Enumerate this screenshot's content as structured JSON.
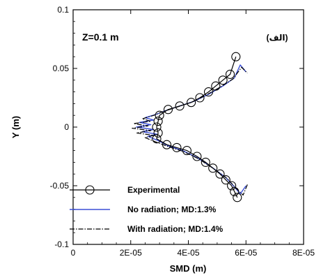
{
  "chart_data": {
    "type": "line",
    "xlabel": "SMD (m)",
    "ylabel": "Y (m)",
    "xlim": [
      0,
      8e-05
    ],
    "ylim": [
      -0.1,
      0.1
    ],
    "x_ticks": [
      "0",
      "2E-05",
      "4E-05",
      "6E-05",
      "8E-05"
    ],
    "y_ticks": [
      "0.1",
      "0.05",
      "0",
      "-0.05",
      "-0.1"
    ],
    "annotations": [
      "Z=0.1 m",
      "(الف)"
    ],
    "legend_position": "bottom-left",
    "series": [
      {
        "name": "Experimental",
        "style": "solid-circle",
        "color": "#000000",
        "points": [
          [
            5.7e-05,
            -0.06
          ],
          [
            5.6e-05,
            -0.055
          ],
          [
            5.5e-05,
            -0.05
          ],
          [
            5.3e-05,
            -0.045
          ],
          [
            5.1e-05,
            -0.04
          ],
          [
            4.85e-05,
            -0.035
          ],
          [
            4.6e-05,
            -0.03
          ],
          [
            4.3e-05,
            -0.025
          ],
          [
            3.95e-05,
            -0.02
          ],
          [
            3.6e-05,
            -0.0175
          ],
          [
            3.25e-05,
            -0.015
          ],
          [
            2.9e-05,
            -0.01
          ],
          [
            2.95e-05,
            -0.005
          ],
          [
            2.9e-05,
            0.0
          ],
          [
            2.95e-05,
            0.005
          ],
          [
            3e-05,
            0.01
          ],
          [
            3.3e-05,
            0.015
          ],
          [
            3.7e-05,
            0.018
          ],
          [
            4.1e-05,
            0.021
          ],
          [
            4.4e-05,
            0.025
          ],
          [
            4.7e-05,
            0.03
          ],
          [
            4.95e-05,
            0.035
          ],
          [
            5.2e-05,
            0.04
          ],
          [
            5.45e-05,
            0.045
          ],
          [
            5.65e-05,
            0.06
          ]
        ]
      },
      {
        "name": "No radiation; MD:1.3%",
        "style": "solid",
        "color": "#3b4fd6",
        "points": [
          [
            6e-05,
            -0.05
          ],
          [
            5.8e-05,
            -0.057
          ],
          [
            5.6e-05,
            -0.051
          ],
          [
            5.3e-05,
            -0.043
          ],
          [
            4.8e-05,
            -0.034
          ],
          [
            4.3e-05,
            -0.026
          ],
          [
            3.8e-05,
            -0.02
          ],
          [
            3.3e-05,
            -0.016
          ],
          [
            3e-05,
            -0.012
          ],
          [
            2.6e-05,
            -0.008
          ],
          [
            2.9e-05,
            -0.006
          ],
          [
            2.4e-05,
            -0.004
          ],
          [
            2.8e-05,
            -0.002
          ],
          [
            2.2e-05,
            0.0
          ],
          [
            2.7e-05,
            0.002
          ],
          [
            2.3e-05,
            0.004
          ],
          [
            2.8e-05,
            0.006
          ],
          [
            2.5e-05,
            0.008
          ],
          [
            2.9e-05,
            0.011
          ],
          [
            3.2e-05,
            0.014
          ],
          [
            3.7e-05,
            0.018
          ],
          [
            4.2e-05,
            0.022
          ],
          [
            4.7e-05,
            0.028
          ],
          [
            5.2e-05,
            0.035
          ],
          [
            5.6e-05,
            0.042
          ],
          [
            5.8e-05,
            0.053
          ],
          [
            6e-05,
            0.047
          ]
        ]
      },
      {
        "name": "With radiation; MD:1.4%",
        "style": "dash-dot",
        "color": "#000000",
        "points": [
          [
            6.05e-05,
            -0.049
          ],
          [
            5.9e-05,
            -0.058
          ],
          [
            5.65e-05,
            -0.052
          ],
          [
            5.35e-05,
            -0.044
          ],
          [
            4.85e-05,
            -0.035
          ],
          [
            4.35e-05,
            -0.027
          ],
          [
            3.85e-05,
            -0.021
          ],
          [
            3.35e-05,
            -0.017
          ],
          [
            2.9e-05,
            -0.013
          ],
          [
            2.5e-05,
            -0.009
          ],
          [
            2.8e-05,
            -0.007
          ],
          [
            2.2e-05,
            -0.005
          ],
          [
            2.7e-05,
            -0.003
          ],
          [
            2.05e-05,
            -0.001
          ],
          [
            2.6e-05,
            0.001
          ],
          [
            2.1e-05,
            0.003
          ],
          [
            2.7e-05,
            0.005
          ],
          [
            2.4e-05,
            0.007
          ],
          [
            2.8e-05,
            0.01
          ],
          [
            3.1e-05,
            0.013
          ],
          [
            3.6e-05,
            0.017
          ],
          [
            4.1e-05,
            0.021
          ],
          [
            4.6e-05,
            0.027
          ],
          [
            5.1e-05,
            0.034
          ],
          [
            5.55e-05,
            0.041
          ],
          [
            5.85e-05,
            0.051
          ],
          [
            6.05e-05,
            0.046
          ]
        ]
      }
    ]
  }
}
